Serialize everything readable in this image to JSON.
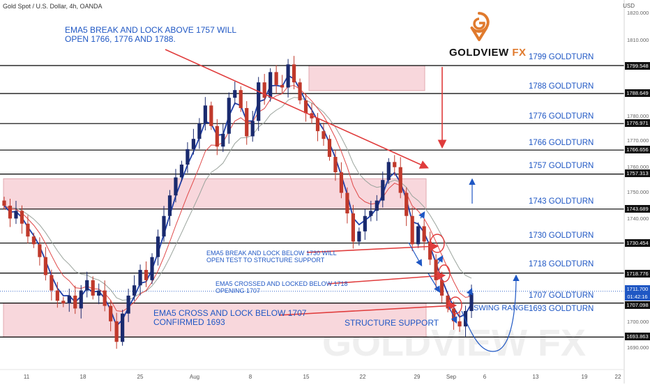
{
  "header": {
    "symbol": "Gold Spot / U.S. Dollar, 4h, OANDA",
    "unit": "USD"
  },
  "logo": {
    "brand": "GOLDVIEW",
    "suffix": "FX",
    "watermark": "GOLDVIEW FX"
  },
  "colors": {
    "candle_up": "#1a2a6e",
    "candle_down": "#c0392b",
    "ema_blue": "#1f3fa8",
    "ema_red": "#e04848",
    "ma_gray": "#9aa39c",
    "zone": "#f8d7dc",
    "annotation": "#1f57c4",
    "arrow_red": "#e03c3c"
  },
  "annotations": {
    "a1_line1": "EMA5 BREAK AND LOCK ABOVE 1757 WILL",
    "a1_line2": "OPEN 1766, 1776 AND 1788.",
    "a2_line1": "EMA5 BREAK AND LOCK BELOW 1730  WILL",
    "a2_line2": "OPEN TEST TO STRUCTURE SUPPORT",
    "a3_line1": "EMA5 CROSSED AND LOCKED BELOW 1718",
    "a3_line2": "OPENING 1707",
    "a4_line1": "EMA5 CROSS AND LOCK BELOW 1707",
    "a4_line2": "CONFIRMED 1693",
    "a5": "STRUCTURE SUPPORT",
    "a6": "SWING RANGE"
  },
  "chart_data": {
    "type": "candlestick",
    "ylim": [
      1685,
      1823
    ],
    "y_ticks": [
      1690,
      1700,
      1710,
      1720,
      1730,
      1740,
      1750,
      1760,
      1770,
      1780,
      1790,
      1800,
      1810,
      1820
    ],
    "y_tick_labels": [
      "1690.000",
      "1700.000",
      "1710.000",
      "1720.000",
      "1730.000",
      "1740.000",
      "1750.000",
      "1760.000",
      "1770.000",
      "1780.000",
      "1790.000",
      "1800.000",
      "1810.000",
      "1820.000"
    ],
    "x_tick_labels": [
      "11",
      "18",
      "25",
      "Aug",
      "8",
      "15",
      "22",
      "29",
      "Sep",
      "6",
      "13",
      "19",
      "22"
    ],
    "levels": [
      {
        "label": "1799 GOLDTURN",
        "price": 1799.548,
        "tag": "1799.548"
      },
      {
        "label": "1788 GOLDTURN",
        "price": 1788.649,
        "tag": "1788.649"
      },
      {
        "label": "1776 GOLDTURN",
        "price": 1776.971,
        "tag": "1776.971"
      },
      {
        "label": "1766 GOLDTURN",
        "price": 1766.656,
        "tag": "1766.656"
      },
      {
        "label": "1757 GOLDTURN",
        "price": 1757.313,
        "tag": "1757.313"
      },
      {
        "label": "1743 GOLDTURN",
        "price": 1743.689,
        "tag": "1743.689"
      },
      {
        "label": "1730 GOLDTURN",
        "price": 1730.454,
        "tag": "1730.454"
      },
      {
        "label": "1718 GOLDTURN",
        "price": 1718.776,
        "tag": "1718.776"
      },
      {
        "label": "1707 GOLDTURN",
        "price": 1707.098,
        "tag": "1707.098"
      },
      {
        "label": "1693 GOLDTURN",
        "price": 1693.863,
        "tag": "1693.863"
      }
    ],
    "current_price": {
      "price": 1711.7,
      "tag": "1711.700",
      "countdown": "01:42:16"
    },
    "close_path": [
      1745,
      1740,
      1743,
      1738,
      1733,
      1730,
      1725,
      1718,
      1712,
      1708,
      1707,
      1710,
      1705,
      1712,
      1716,
      1710,
      1712,
      1706,
      1700,
      1692,
      1703,
      1710,
      1714,
      1720,
      1716,
      1725,
      1733,
      1741,
      1749,
      1756,
      1761,
      1767,
      1771,
      1777,
      1784,
      1776,
      1768,
      1773,
      1787,
      1790,
      1783,
      1772,
      1778,
      1793,
      1787,
      1797,
      1792,
      1791,
      1800,
      1793,
      1786,
      1781,
      1779,
      1774,
      1771,
      1764,
      1758,
      1750,
      1742,
      1731,
      1735,
      1741,
      1743,
      1747,
      1755,
      1762,
      1760,
      1750,
      1741,
      1730,
      1737,
      1731,
      1724,
      1716,
      1710,
      1705,
      1700,
      1698,
      1704,
      1711
    ]
  }
}
